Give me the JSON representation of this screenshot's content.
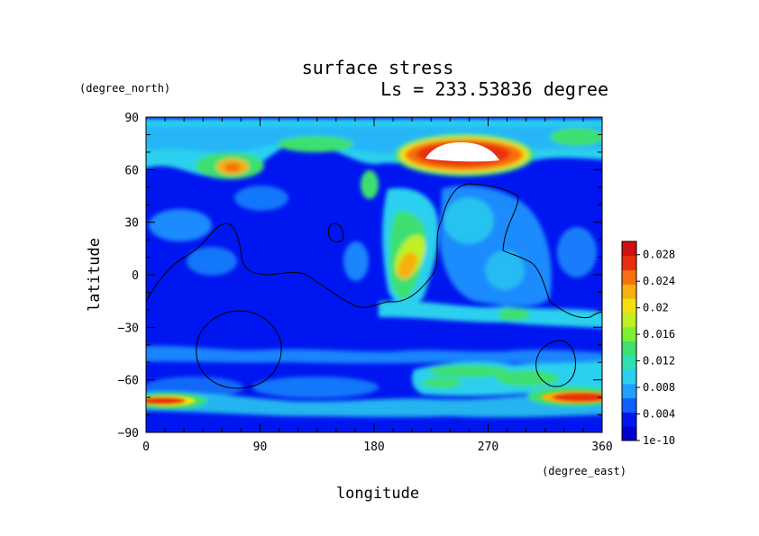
{
  "chart_data": {
    "type": "heatmap",
    "title": "surface stress",
    "subtitle": "Ls = 233.53836 degree",
    "xlabel": "longitude",
    "ylabel": "latitude",
    "x_unit": "(degree_east)",
    "y_unit": "(degree_north)",
    "xlim": [
      0,
      360
    ],
    "ylim": [
      -90,
      90
    ],
    "x_ticks": [
      "0",
      "90",
      "180",
      "270",
      "360"
    ],
    "y_ticks": [
      "90",
      "60",
      "30",
      "0",
      "−30",
      "−60",
      "−90"
    ],
    "x_tick_values": [
      0,
      90,
      180,
      270,
      360
    ],
    "y_tick_values": [
      90,
      60,
      30,
      0,
      -30,
      -60,
      -90
    ],
    "colorbar": {
      "range": [
        0,
        0.03
      ],
      "ticks": [
        "0.028",
        "0.024",
        "0.02",
        "0.016",
        "0.012",
        "0.008",
        "0.004",
        "1e-10"
      ],
      "tick_values": [
        0.028,
        0.024,
        0.02,
        0.016,
        0.012,
        0.008,
        0.004,
        0
      ],
      "colors": [
        "#0000cc",
        "#0016f0",
        "#1060ff",
        "#20a0ff",
        "#2ad0ee",
        "#30e0b0",
        "#3ee070",
        "#7cf030",
        "#c0f020",
        "#f2e010",
        "#f6b010",
        "#f67010",
        "#e83010",
        "#d01010"
      ]
    },
    "background_value": 0.002,
    "features": [
      {
        "name": "north-polar-band",
        "lon_range": [
          0,
          360
        ],
        "lat": 67,
        "value": 0.012
      },
      {
        "name": "north-hotspot-west",
        "lon": 65,
        "lat": 58,
        "value": 0.022
      },
      {
        "name": "north-hotspot-maximum",
        "lon": 242,
        "lat": 66,
        "value": 0.03
      },
      {
        "name": "tharsis-jet",
        "lon": 205,
        "lat": 5,
        "value": 0.022
      },
      {
        "name": "southern-midlatitude-band",
        "lon_range": [
          180,
          360
        ],
        "lat": -52,
        "value": 0.014
      },
      {
        "name": "south-polar-band-west",
        "lon_range": [
          0,
          40
        ],
        "lat": -70,
        "value": 0.024
      },
      {
        "name": "south-polar-band-east",
        "lon_range": [
          320,
          360
        ],
        "lat": -69,
        "value": 0.026
      }
    ],
    "topography_contours": 6,
    "grid": false
  }
}
